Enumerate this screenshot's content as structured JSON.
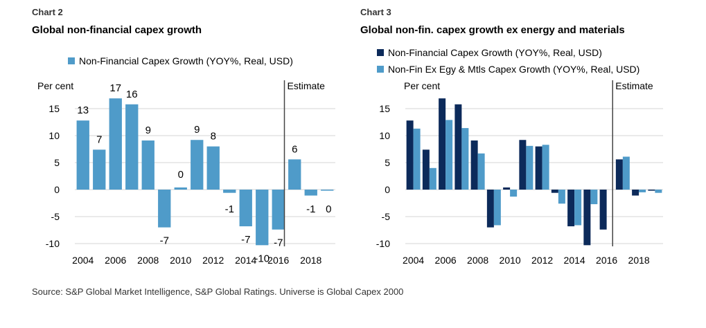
{
  "colors": {
    "light": "#4F9BC9",
    "dark": "#0C2A5A",
    "grid": "#D6D6D6",
    "estimate_line": "#444444"
  },
  "chart_data": [
    {
      "type": "bar",
      "chart_label": "Chart 2",
      "title": "Global non-financial capex growth",
      "ylabel": "Per cent",
      "estimate_label": "Estimate",
      "estimate_after": 2016,
      "ylim": [
        -10,
        18
      ],
      "yticks": [
        15,
        10,
        5,
        0,
        -5,
        -10
      ],
      "x": [
        2004,
        2005,
        2006,
        2007,
        2008,
        2009,
        2010,
        2011,
        2012,
        2013,
        2014,
        2015,
        2016,
        2017,
        2018,
        2019
      ],
      "xtick_labels": [
        "2004",
        "2006",
        "2008",
        "2010",
        "2012",
        "2014",
        "2016",
        "2018"
      ],
      "series": [
        {
          "name": "Non-Financial Capex Growth (YOY%, Real, USD)",
          "values": [
            12.8,
            7.4,
            16.9,
            15.8,
            9.1,
            -7.0,
            0.4,
            9.2,
            8.0,
            -0.6,
            -6.8,
            -10.3,
            -7.4,
            5.6,
            -1.1,
            -0.2
          ]
        }
      ],
      "data_labels": [
        "13",
        "7",
        "17",
        "16",
        "9",
        "-7",
        "0",
        "9",
        "8",
        "-1",
        "-7",
        "-10",
        "-7",
        "6",
        "-1",
        "0"
      ]
    },
    {
      "type": "bar",
      "chart_label": "Chart 3",
      "title": "Global non-fin. capex growth ex energy and materials",
      "ylabel": "Per cent",
      "estimate_label": "Estimate",
      "estimate_after": 2016,
      "ylim": [
        -10,
        18
      ],
      "yticks": [
        15,
        10,
        5,
        0,
        -5,
        -10
      ],
      "x": [
        2004,
        2005,
        2006,
        2007,
        2008,
        2009,
        2010,
        2011,
        2012,
        2013,
        2014,
        2015,
        2016,
        2017,
        2018,
        2019
      ],
      "xtick_labels": [
        "2004",
        "2006",
        "2008",
        "2010",
        "2012",
        "2014",
        "2016",
        "2018"
      ],
      "series": [
        {
          "name": "Non-Financial Capex Growth (YOY%, Real, USD)",
          "values": [
            12.8,
            7.4,
            16.9,
            15.8,
            9.1,
            -7.0,
            0.4,
            9.2,
            8.0,
            -0.6,
            -6.8,
            -10.3,
            -7.4,
            5.6,
            -1.1,
            -0.2
          ]
        },
        {
          "name": "Non-Fin Ex Egy & Mtls Capex Growth (YOY%, Real, USD)",
          "values": [
            11.3,
            4.0,
            12.9,
            11.4,
            6.7,
            -6.6,
            -1.3,
            8.1,
            8.3,
            -2.6,
            -6.6,
            -2.7,
            null,
            6.1,
            -0.5,
            -0.6
          ]
        }
      ]
    }
  ],
  "source": "Source: S&P Global Market Intelligence, S&P Global Ratings. Universe is Global Capex 2000"
}
